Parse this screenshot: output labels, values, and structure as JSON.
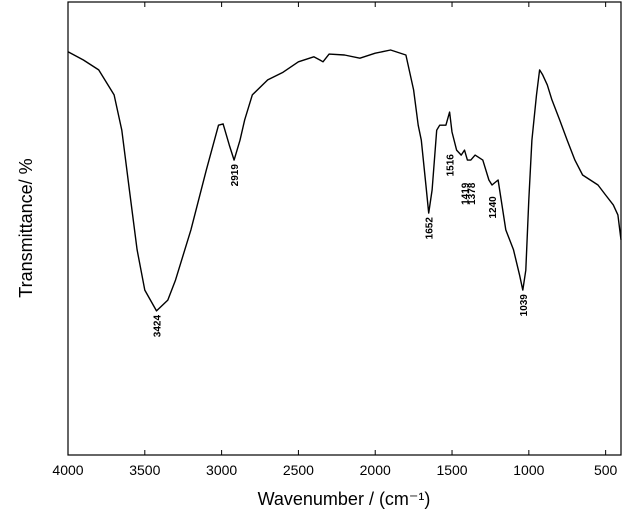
{
  "chart_data": {
    "type": "line",
    "xlabel": "Wavenumber / (cm⁻¹)",
    "ylabel": "Transmittance/ %",
    "xlim": [
      4000,
      400
    ],
    "xticks": [
      4000,
      3500,
      3000,
      2500,
      2000,
      1500,
      1000,
      500
    ],
    "ylim": [
      0,
      100
    ],
    "series": [
      {
        "color": "#000000",
        "x": [
          4000,
          3900,
          3800,
          3700,
          3650,
          3600,
          3550,
          3500,
          3424,
          3350,
          3300,
          3200,
          3100,
          3020,
          2990,
          2950,
          2919,
          2880,
          2850,
          2800,
          2700,
          2600,
          2500,
          2400,
          2360,
          2340,
          2300,
          2200,
          2100,
          2000,
          1900,
          1800,
          1750,
          1720,
          1700,
          1670,
          1652,
          1630,
          1600,
          1580,
          1540,
          1516,
          1500,
          1470,
          1440,
          1419,
          1400,
          1378,
          1350,
          1300,
          1260,
          1240,
          1200,
          1180,
          1150,
          1100,
          1060,
          1039,
          1020,
          1000,
          980,
          950,
          930,
          910,
          880,
          850,
          800,
          750,
          700,
          650,
          600,
          550,
          500,
          450,
          420,
          400
        ],
        "values": [
          89.0,
          87.2,
          85.0,
          79.5,
          71.7,
          58.5,
          45.3,
          36.4,
          31.8,
          34.2,
          38.6,
          49.7,
          62.9,
          72.8,
          73.1,
          68.4,
          65.1,
          69.5,
          74.0,
          79.5,
          82.8,
          84.5,
          86.8,
          87.9,
          87.2,
          86.8,
          88.5,
          88.3,
          87.6,
          88.7,
          89.4,
          88.3,
          80.6,
          72.8,
          69.5,
          59.6,
          53.4,
          58.5,
          71.7,
          72.8,
          72.8,
          75.7,
          71.3,
          67.3,
          66.2,
          67.3,
          65.1,
          65.1,
          66.2,
          65.1,
          60.7,
          59.6,
          60.7,
          56.3,
          49.7,
          45.3,
          39.7,
          36.4,
          40.8,
          56.3,
          69.5,
          79.5,
          85.0,
          83.9,
          81.7,
          78.4,
          74.0,
          69.5,
          65.1,
          61.8,
          60.7,
          59.6,
          57.4,
          55.2,
          53.0,
          47.5
        ]
      }
    ],
    "annotations": [
      {
        "x": 3424,
        "y": 31.8
      },
      {
        "x": 2919,
        "y": 65.1
      },
      {
        "x": 1652,
        "y": 53.4
      },
      {
        "x": 1516,
        "y": 67.3
      },
      {
        "x": 1419,
        "y": 61.0
      },
      {
        "x": 1378,
        "y": 61.0
      },
      {
        "x": 1240,
        "y": 58.0
      },
      {
        "x": 1039,
        "y": 36.4
      }
    ]
  }
}
